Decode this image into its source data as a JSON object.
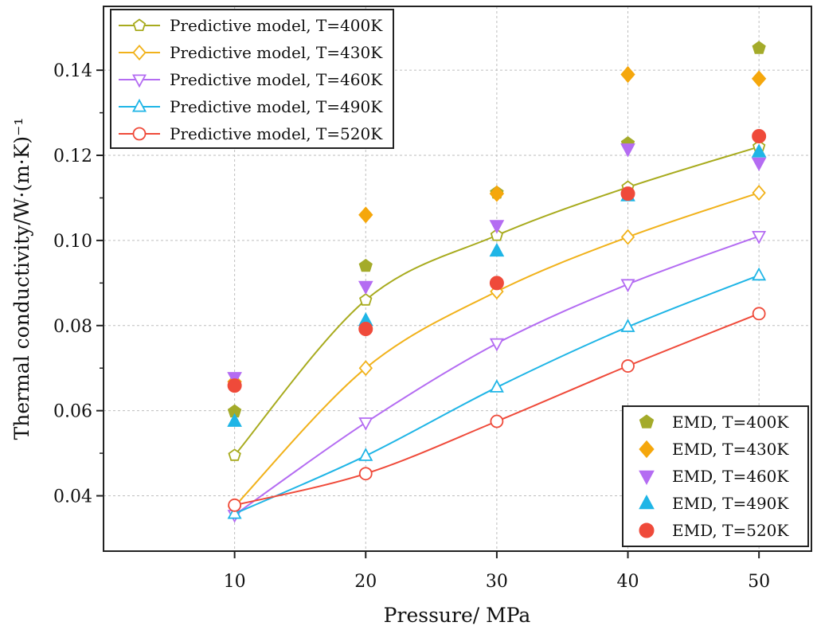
{
  "chart_data": {
    "type": "line",
    "xlabel": "Pressure/ MPa",
    "ylabel": "Thermal conductivity/W·(m·K)⁻¹",
    "xlim": [
      0,
      54
    ],
    "ylim": [
      0.027,
      0.155
    ],
    "x_ticks": [
      "10",
      "20",
      "30",
      "40",
      "50"
    ],
    "y_ticks": [
      "0.04",
      "0.06",
      "0.08",
      "0.10",
      "0.12",
      "0.14"
    ],
    "grid": true,
    "x": [
      10,
      20,
      30,
      40,
      50
    ],
    "series": [
      {
        "name": "Predictive model, T=400K",
        "kind": "line",
        "marker": "pentagon",
        "filled": false,
        "color": "#a8ab1e",
        "values": [
          0.0495,
          0.086,
          0.1012,
          0.1125,
          0.122
        ]
      },
      {
        "name": "Predictive model, T=430K",
        "kind": "line",
        "marker": "diamond",
        "filled": false,
        "color": "#f1b21b",
        "values": [
          0.0375,
          0.07,
          0.088,
          0.1008,
          0.1112
        ]
      },
      {
        "name": "Predictive model, T=460K",
        "kind": "line",
        "marker": "triangle-down",
        "filled": false,
        "color": "#b46cf2",
        "values": [
          0.0355,
          0.0572,
          0.0758,
          0.0897,
          0.101
        ]
      },
      {
        "name": "Predictive model, T=490K",
        "kind": "line",
        "marker": "triangle-up",
        "filled": false,
        "color": "#1fb5e6",
        "values": [
          0.0358,
          0.0494,
          0.0655,
          0.0797,
          0.0918
        ]
      },
      {
        "name": "Predictive model, T=520K",
        "kind": "line",
        "marker": "circle",
        "filled": false,
        "color": "#ef4a3a",
        "values": [
          0.0378,
          0.0452,
          0.0575,
          0.0705,
          0.0828
        ]
      },
      {
        "name": "EMD, T=400K",
        "kind": "scatter",
        "marker": "pentagon",
        "filled": true,
        "color": "#a4ab2a",
        "values": [
          0.0598,
          0.094,
          0.1112,
          0.1228,
          0.1452
        ]
      },
      {
        "name": "EMD, T=430K",
        "kind": "scatter",
        "marker": "diamond",
        "filled": true,
        "color": "#f5a70c",
        "values": [
          0.0668,
          0.106,
          0.111,
          0.139,
          0.138
        ]
      },
      {
        "name": "EMD, T=460K",
        "kind": "scatter",
        "marker": "triangle-down",
        "filled": true,
        "color": "#b46cf2",
        "values": [
          0.0678,
          0.0892,
          0.1035,
          0.1215,
          0.1182
        ]
      },
      {
        "name": "EMD, T=490K",
        "kind": "scatter",
        "marker": "triangle-up",
        "filled": true,
        "color": "#1fb5e6",
        "values": [
          0.0575,
          0.0812,
          0.0975,
          0.1105,
          0.1208
        ]
      },
      {
        "name": "EMD, T=520K",
        "kind": "scatter",
        "marker": "circle",
        "filled": true,
        "color": "#ef4a3a",
        "values": [
          0.0659,
          0.0792,
          0.09,
          0.111,
          0.1245
        ]
      }
    ],
    "legends": [
      {
        "placement": "top-left",
        "series": [
          0,
          1,
          2,
          3,
          4
        ]
      },
      {
        "placement": "bottom-right",
        "series": [
          5,
          6,
          7,
          8,
          9
        ]
      }
    ]
  }
}
